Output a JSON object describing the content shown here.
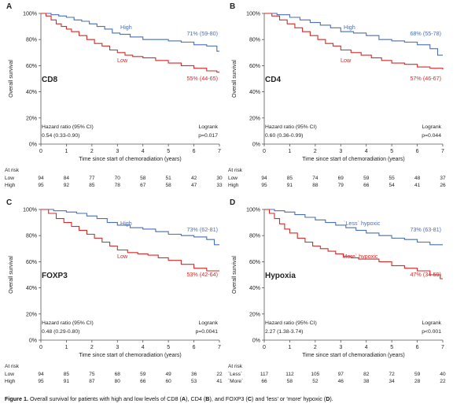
{
  "figure": {
    "caption_label": "Figure 1.",
    "caption": {
      "t1": "Overall survival for patients with high and low levels of CD8 (",
      "t2": "), CD4 (",
      "t3": "), and FOXP3 (",
      "t4": ") and 'less' or 'more' hypoxic (",
      "t5": ").",
      "l1": "A",
      "l2": "B",
      "l3": "C",
      "l4": "D"
    }
  },
  "colors": {
    "high": "#4a6fb5",
    "low": "#d42a2a",
    "axis": "#555555",
    "text": "#222222"
  },
  "chart_data": [
    {
      "type": "line",
      "panel": "A",
      "marker": "CD8",
      "xlabel": "Time since start of chemoradiation (years)",
      "ylabel": "Overall survival",
      "xlim": [
        0,
        7
      ],
      "ylim": [
        0,
        100
      ],
      "xticks": [
        "0",
        "1",
        "2",
        "3",
        "4",
        "5",
        "6",
        "7"
      ],
      "yticks": [
        "0%",
        "20%",
        "40%",
        "60%",
        "80%",
        "100%"
      ],
      "series": [
        {
          "name": "High",
          "color": "#4a6fb5",
          "end_label": "71% (59-80)",
          "x": [
            0,
            0.4,
            0.7,
            1.0,
            1.3,
            1.6,
            1.9,
            2.2,
            2.5,
            2.8,
            3.1,
            3.5,
            4.0,
            4.5,
            5.0,
            5.5,
            6.0,
            6.5,
            6.9,
            7.0
          ],
          "y": [
            100,
            99,
            98,
            97,
            95,
            94,
            92,
            90,
            88,
            85,
            84,
            82,
            80,
            80,
            79,
            78,
            76,
            75,
            71,
            71
          ]
        },
        {
          "name": "Low",
          "color": "#d42a2a",
          "end_label": "55% (44-65)",
          "x": [
            0,
            0.2,
            0.4,
            0.6,
            0.8,
            1.0,
            1.2,
            1.5,
            1.8,
            2.1,
            2.4,
            2.7,
            3.0,
            3.3,
            3.6,
            4.0,
            4.5,
            5.0,
            5.5,
            6.0,
            6.5,
            6.9,
            7.0
          ],
          "y": [
            100,
            98,
            95,
            92,
            90,
            88,
            86,
            83,
            80,
            77,
            75,
            72,
            70,
            68,
            67,
            66,
            64,
            62,
            60,
            58,
            56,
            55,
            55
          ]
        }
      ],
      "stats": {
        "hr_label": "Hazard ratio (95% CI)",
        "hr_value": "0.54 (0.33-0.90)",
        "lr_label": "Logrank",
        "lr_value": "p=0.017"
      },
      "at_risk": {
        "title": "At risk",
        "rows": [
          {
            "label": "Low",
            "values": [
              "94",
              "84",
              "77",
              "70",
              "58",
              "51",
              "42",
              "30"
            ]
          },
          {
            "label": "High",
            "values": [
              "95",
              "92",
              "85",
              "78",
              "67",
              "58",
              "47",
              "33"
            ]
          }
        ]
      }
    },
    {
      "type": "line",
      "panel": "B",
      "marker": "CD4",
      "xlabel": "Time since start of chemoradiation (years)",
      "ylabel": "Overall survival",
      "xlim": [
        0,
        7
      ],
      "ylim": [
        0,
        100
      ],
      "xticks": [
        "0",
        "1",
        "2",
        "3",
        "4",
        "5",
        "6",
        "7"
      ],
      "yticks": [
        "0%",
        "20%",
        "40%",
        "60%",
        "80%",
        "100%"
      ],
      "series": [
        {
          "name": "High",
          "color": "#4a6fb5",
          "end_label": "68% (55-78)",
          "x": [
            0,
            0.5,
            1.0,
            1.4,
            1.8,
            2.2,
            2.6,
            3.0,
            3.5,
            4.0,
            4.5,
            5.0,
            5.5,
            6.0,
            6.5,
            6.8,
            7.0
          ],
          "y": [
            100,
            99,
            97,
            95,
            93,
            91,
            89,
            86,
            85,
            83,
            80,
            79,
            78,
            76,
            73,
            68,
            68
          ]
        },
        {
          "name": "Low",
          "color": "#d42a2a",
          "end_label": "57% (46-67)",
          "x": [
            0,
            0.3,
            0.6,
            0.9,
            1.2,
            1.5,
            1.8,
            2.1,
            2.4,
            2.7,
            3.0,
            3.4,
            3.8,
            4.2,
            4.6,
            5.0,
            5.5,
            6.0,
            6.5,
            7.0
          ],
          "y": [
            100,
            98,
            95,
            92,
            89,
            86,
            83,
            80,
            77,
            75,
            72,
            70,
            68,
            66,
            64,
            62,
            61,
            59,
            58,
            57
          ]
        }
      ],
      "stats": {
        "hr_label": "Hazard ratio (95% CI)",
        "hr_value": "0.60 (0.36-0.99)",
        "lr_label": "Logrank",
        "lr_value": "p=0.044"
      },
      "at_risk": {
        "title": "At risk",
        "rows": [
          {
            "label": "Low",
            "values": [
              "94",
              "85",
              "74",
              "69",
              "59",
              "55",
              "48",
              "37"
            ]
          },
          {
            "label": "High",
            "values": [
              "95",
              "91",
              "88",
              "79",
              "66",
              "54",
              "41",
              "26"
            ]
          }
        ]
      }
    },
    {
      "type": "line",
      "panel": "C",
      "marker": "FOXP3",
      "xlabel": "Time since start of chemoradiation (years)",
      "ylabel": "Overall survival",
      "xlim": [
        0,
        7
      ],
      "ylim": [
        0,
        100
      ],
      "xticks": [
        "0",
        "1",
        "2",
        "3",
        "4",
        "5",
        "6",
        "7"
      ],
      "yticks": [
        "0%",
        "20%",
        "40%",
        "60%",
        "80%",
        "100%"
      ],
      "series": [
        {
          "name": "High",
          "color": "#4a6fb5",
          "end_label": "73% (62-81)",
          "x": [
            0,
            0.5,
            1.0,
            1.4,
            1.8,
            2.2,
            2.6,
            3.0,
            3.5,
            4.0,
            4.5,
            5.0,
            5.5,
            6.0,
            6.5,
            6.8,
            7.0
          ],
          "y": [
            100,
            99,
            98,
            97,
            95,
            93,
            90,
            88,
            86,
            85,
            83,
            81,
            80,
            79,
            77,
            73,
            73
          ]
        },
        {
          "name": "Low",
          "color": "#d42a2a",
          "end_label": "53% (42-64)",
          "x": [
            0,
            0.3,
            0.6,
            0.9,
            1.2,
            1.5,
            1.8,
            2.1,
            2.4,
            2.7,
            3.0,
            3.4,
            3.8,
            4.2,
            4.6,
            5.0,
            5.5,
            6.0,
            6.5,
            7.0
          ],
          "y": [
            100,
            97,
            93,
            90,
            87,
            84,
            81,
            78,
            75,
            72,
            69,
            67,
            66,
            65,
            63,
            61,
            58,
            55,
            53,
            53
          ]
        }
      ],
      "stats": {
        "hr_label": "Hazard ratio (95% CI)",
        "hr_value": "0.48 (0.29-0.80)",
        "lr_label": "Logrank",
        "lr_value": "p=0.0041"
      },
      "at_risk": {
        "title": "At risk",
        "rows": [
          {
            "label": "Low",
            "values": [
              "94",
              "85",
              "75",
              "68",
              "59",
              "49",
              "36",
              "22"
            ]
          },
          {
            "label": "High",
            "values": [
              "95",
              "91",
              "87",
              "80",
              "66",
              "60",
              "53",
              "41"
            ]
          }
        ]
      }
    },
    {
      "type": "line",
      "panel": "D",
      "marker": "Hypoxia",
      "xlabel": "Time since start of chemoradiation (years)",
      "ylabel": "Overall survival",
      "xlim": [
        0,
        7
      ],
      "ylim": [
        0,
        100
      ],
      "xticks": [
        "0",
        "1",
        "2",
        "3",
        "4",
        "5",
        "6",
        "7"
      ],
      "yticks": [
        "0%",
        "20%",
        "40%",
        "60%",
        "80%",
        "100%"
      ],
      "series": [
        {
          "name": "`Less` hypoxic",
          "color": "#4a6fb5",
          "end_label": "73% (63-81)",
          "x": [
            0,
            0.4,
            0.8,
            1.2,
            1.6,
            2.0,
            2.4,
            2.8,
            3.2,
            3.6,
            4.0,
            4.5,
            5.0,
            5.5,
            6.0,
            6.5,
            7.0
          ],
          "y": [
            100,
            99,
            98,
            96,
            94,
            92,
            90,
            88,
            86,
            84,
            82,
            80,
            78,
            77,
            75,
            73,
            73
          ]
        },
        {
          "name": "`More` hypoxic",
          "color": "#d42a2a",
          "end_label": "47% (34-59)",
          "x": [
            0,
            0.2,
            0.4,
            0.6,
            0.8,
            1.0,
            1.3,
            1.6,
            1.9,
            2.2,
            2.5,
            2.8,
            3.1,
            3.4,
            3.7,
            4.0,
            4.5,
            5.0,
            5.5,
            6.0,
            6.5,
            6.9,
            7.0
          ],
          "y": [
            100,
            97,
            93,
            89,
            85,
            82,
            78,
            75,
            72,
            70,
            68,
            66,
            64,
            63,
            62,
            62,
            60,
            57,
            55,
            53,
            50,
            47,
            47
          ]
        }
      ],
      "stats": {
        "hr_label": "Hazard ratio (95% CI)",
        "hr_value": "2.27 (1.38-3.74)",
        "lr_label": "Logrank",
        "lr_value": "p<0.001"
      },
      "at_risk": {
        "title": "At risk",
        "rows": [
          {
            "label": "`Less`",
            "values": [
              "117",
              "112",
              "105",
              "97",
              "82",
              "72",
              "59",
              "40"
            ]
          },
          {
            "label": "`More`",
            "values": [
              "66",
              "58",
              "52",
              "46",
              "38",
              "34",
              "28",
              "22"
            ]
          }
        ]
      }
    }
  ]
}
